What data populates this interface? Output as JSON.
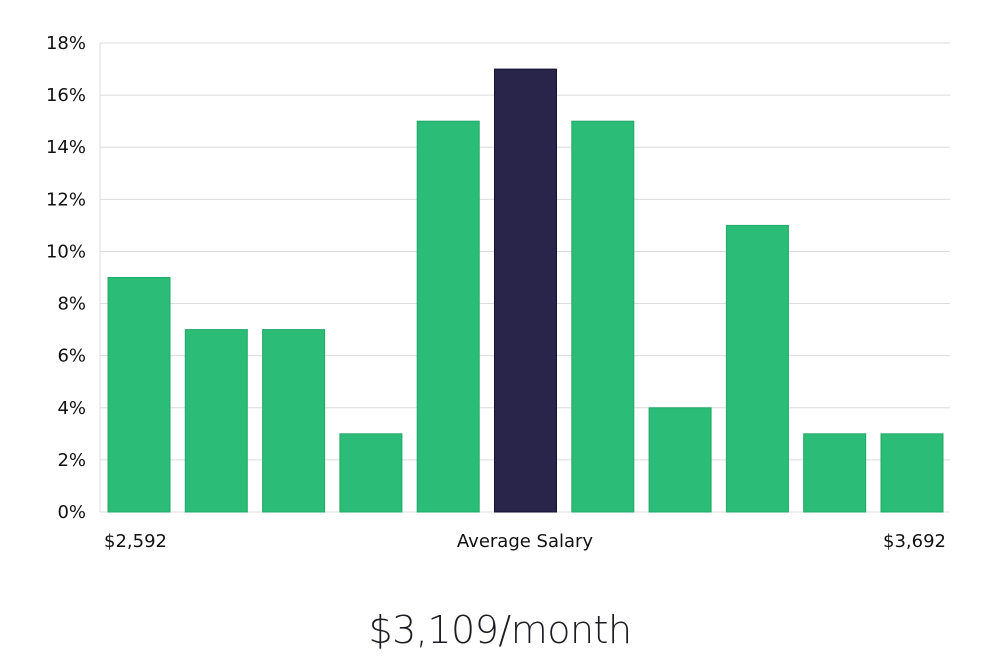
{
  "chart_data": {
    "type": "bar",
    "values": [
      9,
      7,
      7,
      3,
      15,
      17,
      15,
      4,
      11,
      3,
      3
    ],
    "highlight_index": 5,
    "ylim": [
      0,
      18
    ],
    "y_ticks": [
      "0%",
      "2%",
      "4%",
      "6%",
      "8%",
      "10%",
      "12%",
      "14%",
      "16%",
      "18%"
    ],
    "x_labels": {
      "left": "$2,592",
      "center": "Average Salary",
      "right": "$3,692"
    },
    "grid": true,
    "colors": {
      "bar": "#2bbd78",
      "highlight": "#28244a",
      "grid": "#dcdcdc"
    }
  },
  "headline": "$3,109/month"
}
